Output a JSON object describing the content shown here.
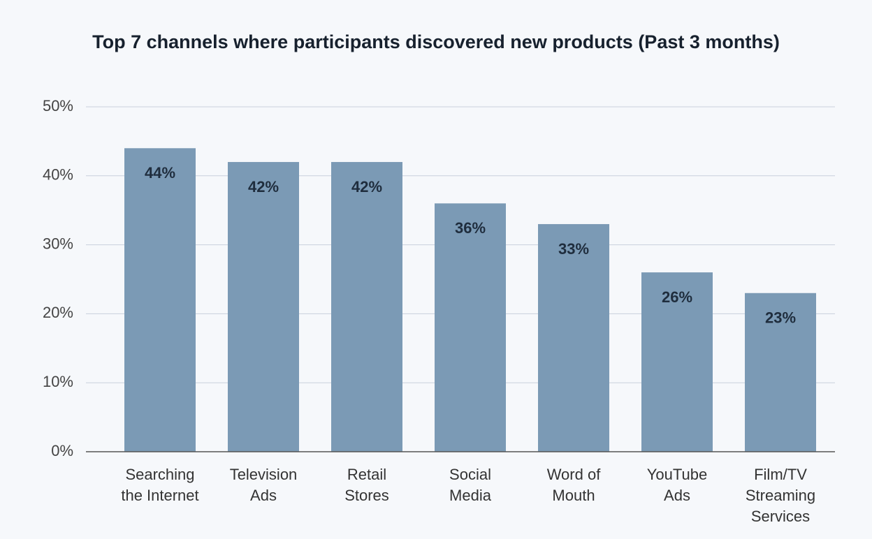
{
  "chart_data": {
    "type": "bar",
    "title": "Top 7 channels where participants discovered new products (Past 3 months)",
    "categories": [
      "Searching\nthe Internet",
      "Television\nAds",
      "Retail\nStores",
      "Social\nMedia",
      "Word of\nMouth",
      "YouTube\nAds",
      "Film/TV\nStreaming\nServices"
    ],
    "values": [
      44,
      42,
      42,
      36,
      33,
      26,
      23
    ],
    "value_labels": [
      "44%",
      "42%",
      "42%",
      "36%",
      "33%",
      "26%",
      "23%"
    ],
    "color": "#7b9ab5",
    "ylim": [
      0,
      50
    ],
    "yticks": [
      {
        "value": 0,
        "label": "0%"
      },
      {
        "value": 10,
        "label": "10%"
      },
      {
        "value": 20,
        "label": "20%"
      },
      {
        "value": 30,
        "label": "30%"
      },
      {
        "value": 40,
        "label": "40%"
      },
      {
        "value": 50,
        "label": "50%"
      }
    ],
    "grid": true
  }
}
